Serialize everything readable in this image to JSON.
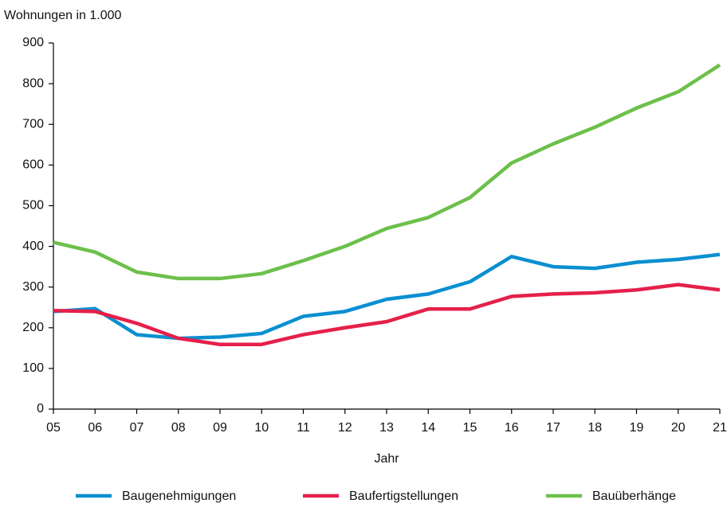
{
  "chart_data": {
    "type": "line",
    "ylabel": "Wohnungen in 1.000",
    "xlabel": "Jahr",
    "categories": [
      "05",
      "06",
      "07",
      "08",
      "09",
      "10",
      "11",
      "12",
      "13",
      "14",
      "15",
      "16",
      "17",
      "18",
      "19",
      "20",
      "21"
    ],
    "series": [
      {
        "name": "Baugenehmigungen",
        "color": "#0a8fd1",
        "values": [
          240,
          247,
          183,
          174,
          177,
          186,
          228,
          240,
          270,
          283,
          313,
          375,
          350,
          346,
          361,
          368,
          380
        ]
      },
      {
        "name": "Baufertigstellungen",
        "color": "#e5204a",
        "values": [
          242,
          240,
          211,
          174,
          159,
          159,
          183,
          200,
          215,
          246,
          246,
          277,
          283,
          286,
          293,
          306,
          293
        ]
      },
      {
        "name": "Bauüberhänge",
        "color": "#6cc04a",
        "values": [
          410,
          386,
          337,
          321,
          321,
          333,
          365,
          400,
          444,
          471,
          520,
          605,
          652,
          693,
          740,
          780,
          846
        ]
      }
    ],
    "ylim": [
      0,
      900
    ],
    "yticks": [
      0,
      100,
      200,
      300,
      400,
      500,
      600,
      700,
      800,
      900
    ],
    "grid": false
  }
}
